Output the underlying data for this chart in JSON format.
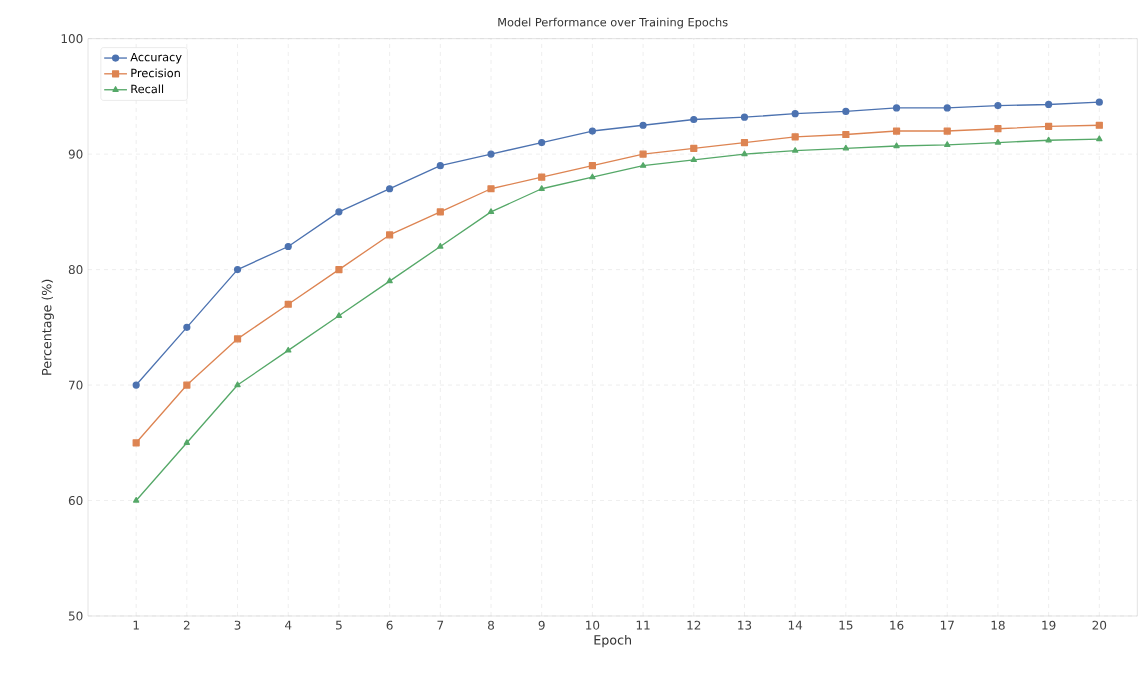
{
  "chart_data": {
    "type": "line",
    "title": "Model Performance over Training Epochs",
    "xlabel": "Epoch",
    "ylabel": "Percentage (%)",
    "x": [
      1,
      2,
      3,
      4,
      5,
      6,
      7,
      8,
      9,
      10,
      11,
      12,
      13,
      14,
      15,
      16,
      17,
      18,
      19,
      20
    ],
    "series": [
      {
        "name": "Accuracy",
        "color": "#4c72b0",
        "marker": "circle",
        "values": [
          70,
          75,
          80,
          82,
          85,
          87,
          89,
          90,
          91,
          92,
          92.5,
          93,
          93.2,
          93.5,
          93.7,
          94,
          94,
          94.2,
          94.3,
          94.5
        ]
      },
      {
        "name": "Precision",
        "color": "#dd8452",
        "marker": "square",
        "values": [
          65,
          70,
          74,
          77,
          80,
          83,
          85,
          87,
          88,
          89,
          90,
          90.5,
          91,
          91.5,
          91.7,
          92,
          92,
          92.2,
          92.4,
          92.5
        ]
      },
      {
        "name": "Recall",
        "color": "#55a868",
        "marker": "triangle",
        "values": [
          60,
          65,
          70,
          73,
          76,
          79,
          82,
          85,
          87,
          88,
          89,
          89.5,
          90,
          90.3,
          90.5,
          90.7,
          90.8,
          91,
          91.2,
          91.3
        ]
      }
    ],
    "xlim": [
      0.05,
      20.75
    ],
    "xticks": [
      1,
      2,
      3,
      4,
      5,
      6,
      7,
      8,
      9,
      10,
      11,
      12,
      13,
      14,
      15,
      16,
      17,
      18,
      19,
      20
    ],
    "ylim": [
      50,
      100
    ],
    "yticks": [
      50,
      60,
      70,
      80,
      90,
      100
    ],
    "grid": true,
    "legend": "top left",
    "line_style": "solid"
  }
}
